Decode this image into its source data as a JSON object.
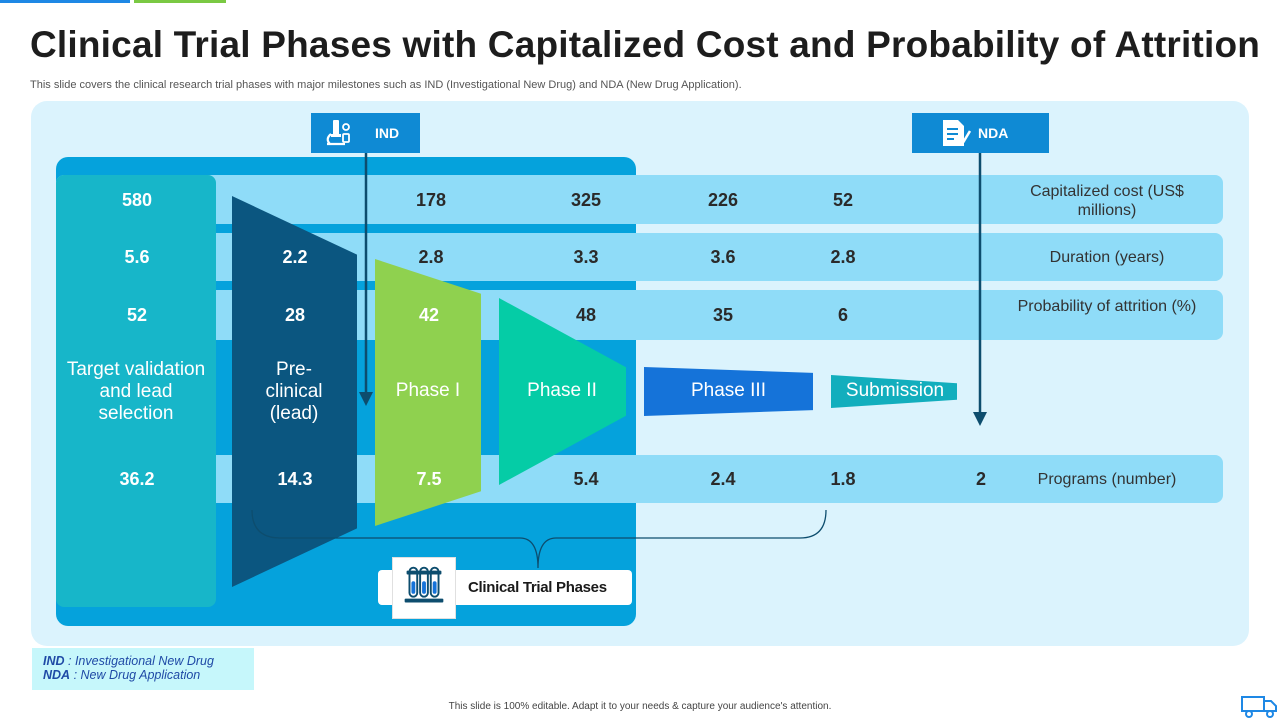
{
  "title": "Clinical Trial Phases with Capitalized Cost and Probability of Attrition",
  "subtitle": "This slide covers the clinical research trial phases with major milestones such as IND (Investigational New Drug) and NDA (New Drug Application).",
  "milestones": {
    "ind": {
      "label": "IND",
      "icon": "microscope-icon"
    },
    "nda": {
      "label": "NDA",
      "icon": "document-check-icon"
    }
  },
  "phases": {
    "target": "Target validation and lead selection",
    "preclinical": "Pre-clinical (lead)",
    "phase1": "Phase I",
    "phase2": "Phase II",
    "phase3": "Phase III",
    "submission": "Submission"
  },
  "rows": {
    "cost": {
      "label": "Capitalized cost (US$ millions)",
      "values": [
        "580",
        "178",
        "325",
        "226",
        "52"
      ]
    },
    "duration": {
      "label": "Duration (years)",
      "values": [
        "5.6",
        "2.2",
        "2.8",
        "3.3",
        "3.6",
        "2.8"
      ]
    },
    "attrition": {
      "label": "Probability of attrition (%)",
      "values": [
        "52",
        "28",
        "42",
        "48",
        "35",
        "6"
      ]
    },
    "programs": {
      "label": "Programs (number)",
      "values": [
        "36.2",
        "14.3",
        "7.5",
        "5.4",
        "2.4",
        "1.8",
        "2"
      ]
    }
  },
  "group_label": "Clinical Trial Phases",
  "legend": {
    "ind_abbr": "IND",
    "ind_text": ": Investigational New Drug",
    "nda_abbr": "NDA",
    "nda_text": ": New Drug Application"
  },
  "footer": "This slide is 100% editable. Adapt it to your needs & capture your audience's attention.",
  "colors": {
    "panel": "#dbf3fd",
    "blue_block": "#05a2dc",
    "row_band": "#8fdcf8",
    "teal": "#17b6c9",
    "preclinical": "#0b5680",
    "phase1": "#8fd14f",
    "phase2": "#05cca6",
    "phase3": "#1573d9",
    "submission": "#12aebd",
    "milestone_tag": "#0f8ad4"
  }
}
